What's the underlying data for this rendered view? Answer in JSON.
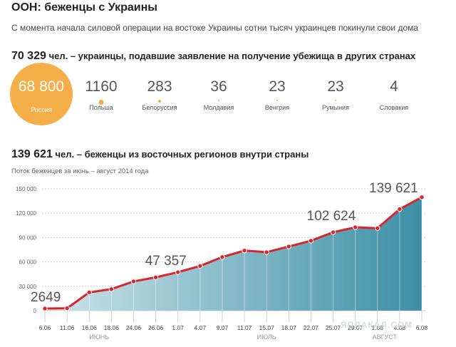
{
  "header": {
    "title": "ООН: беженцы с Украины",
    "subtitle": "С момента начала силовой операции на востоке Украины сотни тысяч украинцев покинули свои дома"
  },
  "abroad": {
    "total": "70 329",
    "label": "чел. – украинцы, подавшие заявление на получение убежища в других странах",
    "countries": [
      {
        "value": "68 800",
        "name": "Россия"
      },
      {
        "value": "1160",
        "name": "Польша"
      },
      {
        "value": "283",
        "name": "Белоруссия"
      },
      {
        "value": "36",
        "name": "Молдавия"
      },
      {
        "value": "23",
        "name": "Венгрия"
      },
      {
        "value": "23",
        "name": "Румыния"
      },
      {
        "value": "4",
        "name": "Словакия"
      }
    ]
  },
  "internal": {
    "total": "139 621",
    "label": "чел. – беженцы из восточных регионов внутри страны",
    "caption": "Поток беженцев за июнь – август 2014 года"
  },
  "watermark": "ЯПЛАКАЛ.COM",
  "colors": {
    "accent_orange": "#f6ae48",
    "line_red": "#d9262b",
    "area_fill": "#4e9bb0"
  },
  "chart_data": {
    "type": "area",
    "x": [
      "6.06",
      "11.06",
      "16.06",
      "18.06",
      "24.06",
      "26.06",
      "1.07",
      "4.07",
      "9.07",
      "11.07",
      "15.07",
      "18.07",
      "22.07",
      "25.07",
      "29.07",
      "1.08",
      "4.08",
      "6.08"
    ],
    "tick_labels": [
      "6.06",
      "11.06",
      "16.06",
      "18.06",
      "24.06",
      "26.06",
      "1.07",
      "4.07",
      "9.07",
      "11.07",
      "15.07",
      "18.07",
      "22.07",
      "25.07",
      "29.07",
      "1.08",
      "4.08",
      "6.08"
    ],
    "months": [
      "ИЮНЬ",
      "ИЮЛЬ",
      "АВГУСТ"
    ],
    "values": [
      2649,
      3000,
      22500,
      26500,
      36000,
      41000,
      47357,
      55000,
      66000,
      74000,
      72000,
      79000,
      86000,
      96500,
      102624,
      101500,
      125000,
      139621
    ],
    "ylim": [
      0,
      150000
    ],
    "yticks": [
      "0",
      "30 000",
      "60 000",
      "90 000",
      "120 000",
      "150 000"
    ],
    "annotations": [
      {
        "index": 0,
        "label": "2649"
      },
      {
        "index": 6,
        "label": "47 357"
      },
      {
        "index": 14,
        "label": "102 624"
      },
      {
        "index": 17,
        "label": "139 621"
      }
    ],
    "grid": true
  }
}
